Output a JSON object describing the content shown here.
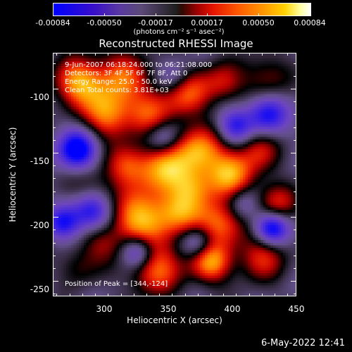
{
  "colorbar": {
    "tick_labels": [
      "-0.00084",
      "-0.00050",
      "-0.00017",
      "0.00017",
      "0.00050",
      "0.00084"
    ],
    "units_label": "(photons cm⁻² s⁻¹ asec⁻²)",
    "colors": [
      "#0000ff",
      "#5a3aa0",
      "#1e1e1e",
      "#e61400",
      "#ffd200",
      "#ffffff"
    ]
  },
  "title": "Reconstructed RHESSI Image",
  "info": {
    "time_range": "9-Jun-2007 06:18:24.000 to 06:21:08.000",
    "detectors": "Detectors: 3F 4F 5F 6F 7F 8F, Att 0",
    "energy_range": "Energy Range: 25.0 - 50.0 keV",
    "clean_counts": "Clean    Total counts: 3.81E+03",
    "peak": "Position of Peak = [344,-124]"
  },
  "x_axis": {
    "label": "Heliocentric X (arcsec)",
    "range": [
      262,
      452
    ],
    "ticks": [
      300,
      350,
      400,
      450
    ]
  },
  "y_axis": {
    "label": "Heliocentric Y (arcsec)",
    "range": [
      -262,
      -72
    ],
    "ticks": [
      -100,
      -150,
      -200,
      -250
    ]
  },
  "footer": "6-May-2022 12:41"
}
